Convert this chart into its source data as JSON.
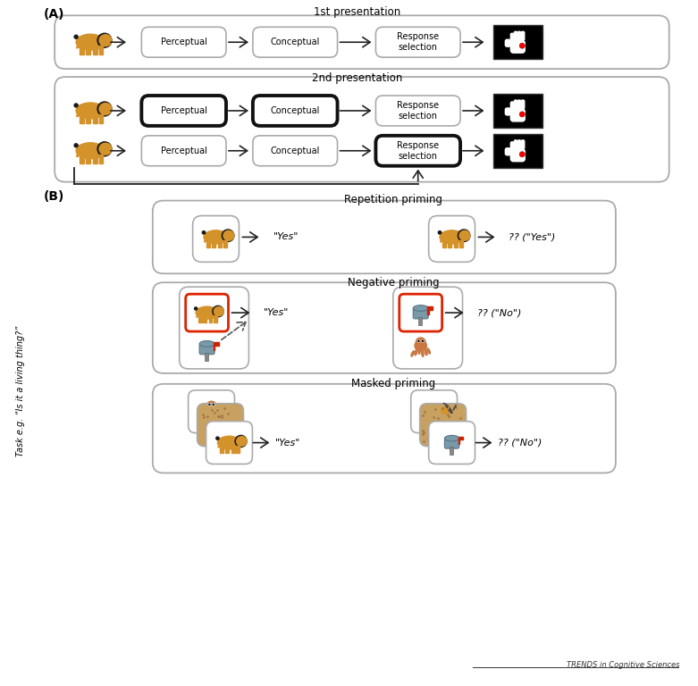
{
  "fig_width": 7.81,
  "fig_height": 7.68,
  "dpi": 100,
  "bg_color": "#ffffff",
  "panel_A_label": "(A)",
  "panel_B_label": "(B)",
  "first_pres_title": "1st presentation",
  "second_pres_title": "2nd presentation",
  "rep_priming_title": "Repetition priming",
  "neg_priming_title": "Negative priming",
  "masked_priming_title": "Masked priming",
  "task_label": "Task e.g. “Is it a living thing?”",
  "box_labels": [
    "Perceptual",
    "Conceptual",
    "Response\nselection"
  ],
  "trends_text": "TRENDS in Cognitive Sciences",
  "box_color": "#ffffff",
  "box_edge_color": "#aaaaaa",
  "box_edge_bold": "#111111",
  "arrow_color": "#222222",
  "red_border_color": "#dd2200",
  "lion_body_color": "#d4922a",
  "lion_mane_color": "#1a1a1a",
  "octopus_color": "#c87840",
  "mailbox_body_color": "#7a9aaa",
  "texture_color": "#c8a060",
  "hand_color": "#ffffff"
}
